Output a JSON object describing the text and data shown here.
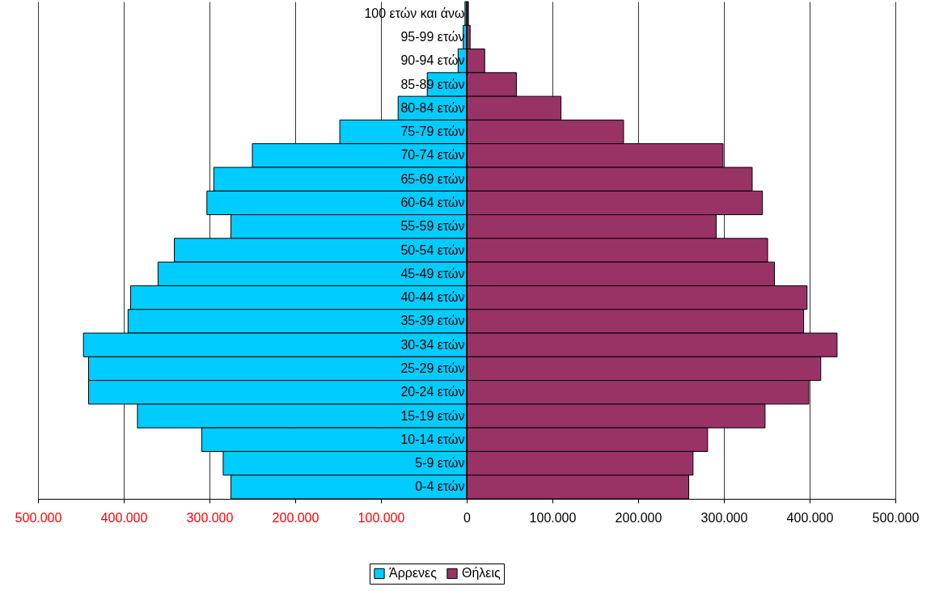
{
  "chart_data": {
    "type": "bar",
    "orientation": "horizontal",
    "categories": [
      "100 ετών και άνω",
      "95-99 ετών",
      "90-94 ετών",
      "85-89 ετών",
      "80-84 ετών",
      "75-79 ετών",
      "70-74 ετών",
      "65-69 ετών",
      "60-64 ετών",
      "55-59 ετών",
      "50-54 ετών",
      "45-49 ετών",
      "40-44 ετών",
      "35-39 ετών",
      "30-34 ετών",
      "25-29 ετών",
      "20-24 ετών",
      "15-19 ετών",
      "10-14 ετών",
      "5-9 ετών",
      "0-4 ετών"
    ],
    "series": [
      {
        "name": "Άρρενες",
        "color": "#00ccff",
        "values": [
          -2000,
          -4000,
          -10000,
          -46000,
          -80000,
          -148000,
          -250000,
          -295000,
          -303000,
          -275000,
          -341000,
          -360000,
          -392000,
          -395000,
          -447000,
          -441000,
          -441000,
          -384000,
          -309000,
          -284000,
          -275000
        ]
      },
      {
        "name": "Θήλεις",
        "color": "#993366",
        "values": [
          2000,
          4000,
          21000,
          58000,
          110000,
          183000,
          299000,
          333000,
          345000,
          291000,
          351000,
          359000,
          397000,
          393000,
          432000,
          413000,
          399000,
          348000,
          281000,
          264000,
          259000
        ]
      }
    ],
    "xlim": [
      -500000,
      500000
    ],
    "xticks": [
      {
        "value": -500000,
        "label": "500.000"
      },
      {
        "value": -400000,
        "label": "400.000"
      },
      {
        "value": -300000,
        "label": "300.000"
      },
      {
        "value": -200000,
        "label": "200.000"
      },
      {
        "value": -100000,
        "label": "100.000"
      },
      0,
      {
        "value": 100000,
        "label": "100.000"
      },
      {
        "value": 200000,
        "label": "200.000"
      },
      {
        "value": 300000,
        "label": "300.000"
      },
      {
        "value": 400000,
        "label": "400.000"
      },
      {
        "value": 500000,
        "label": "500.000"
      }
    ],
    "grid": "x",
    "legend": "bottom",
    "stacked": true
  }
}
